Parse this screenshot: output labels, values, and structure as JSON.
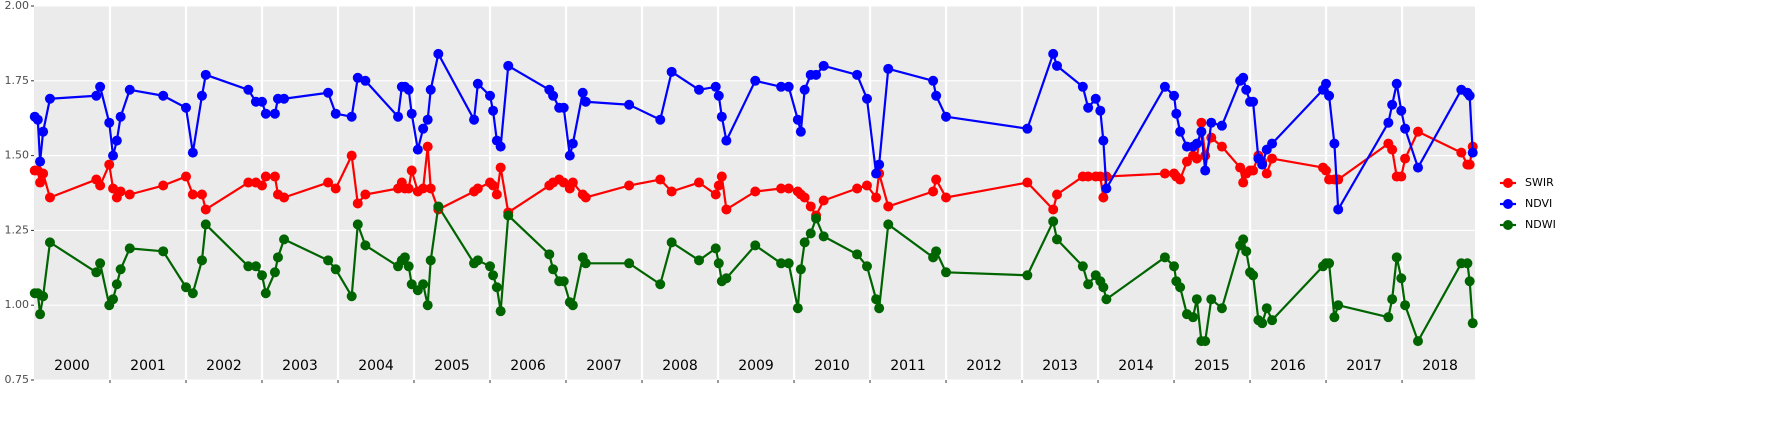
{
  "chart_data": {
    "type": "line",
    "x": [
      2000.01,
      2000.05,
      2000.08,
      2000.12,
      2000.21,
      2000.82,
      2000.87,
      2000.99,
      2001.04,
      2001.09,
      2001.14,
      2001.26,
      2001.7,
      2002.0,
      2002.09,
      2002.21,
      2002.26,
      2002.82,
      2002.92,
      2003.0,
      2003.05,
      2003.17,
      2003.21,
      2003.29,
      2003.87,
      2003.97,
      2004.18,
      2004.26,
      2004.36,
      2004.79,
      2004.84,
      2004.88,
      2004.93,
      2004.97,
      2005.05,
      2005.12,
      2005.18,
      2005.22,
      2005.32,
      2005.79,
      2005.84,
      2006.0,
      2006.04,
      2006.09,
      2006.14,
      2006.24,
      2006.78,
      2006.83,
      2006.91,
      2006.97,
      2007.05,
      2007.09,
      2007.22,
      2007.26,
      2007.83,
      2008.24,
      2008.39,
      2008.75,
      2008.97,
      2009.01,
      2009.05,
      2009.11,
      2009.49,
      2009.83,
      2009.93,
      2010.05,
      2010.09,
      2010.14,
      2010.22,
      2010.29,
      2010.39,
      2010.83,
      2010.96,
      2011.08,
      2011.12,
      2011.24,
      2011.83,
      2011.87,
      2012.0,
      2013.07,
      2013.41,
      2013.46,
      2013.8,
      2013.87,
      2013.97,
      2014.03,
      2014.07,
      2014.11,
      2014.88,
      2015.0,
      2015.03,
      2015.08,
      2015.17,
      2015.25,
      2015.3,
      2015.36,
      2015.41,
      2015.49,
      2015.63,
      2015.87,
      2015.91,
      2015.95,
      2016.0,
      2016.04,
      2016.11,
      2016.16,
      2016.22,
      2016.29,
      2016.96,
      2017.0,
      2017.04,
      2017.11,
      2017.16,
      2017.82,
      2017.87,
      2017.93,
      2017.99,
      2018.04,
      2018.21,
      2018.78,
      2018.86,
      2018.89,
      2018.93
    ],
    "series": [
      {
        "name": "SWIR",
        "color": "#ff0000",
        "values": [
          1.45,
          1.45,
          1.41,
          1.44,
          1.36,
          1.42,
          1.4,
          1.47,
          1.39,
          1.36,
          1.38,
          1.37,
          1.4,
          1.43,
          1.37,
          1.37,
          1.32,
          1.41,
          1.41,
          1.4,
          1.43,
          1.43,
          1.37,
          1.36,
          1.41,
          1.39,
          1.5,
          1.34,
          1.37,
          1.39,
          1.41,
          1.39,
          1.39,
          1.45,
          1.38,
          1.39,
          1.53,
          1.39,
          1.32,
          1.38,
          1.39,
          1.41,
          1.4,
          1.37,
          1.46,
          1.31,
          1.4,
          1.41,
          1.42,
          1.41,
          1.39,
          1.41,
          1.37,
          1.36,
          1.4,
          1.42,
          1.38,
          1.41,
          1.37,
          1.4,
          1.43,
          1.32,
          1.38,
          1.39,
          1.39,
          1.38,
          1.37,
          1.36,
          1.33,
          1.3,
          1.35,
          1.39,
          1.4,
          1.36,
          1.44,
          1.33,
          1.38,
          1.42,
          1.36,
          1.41,
          1.32,
          1.37,
          1.43,
          1.43,
          1.43,
          1.43,
          1.36,
          1.43,
          1.44,
          1.44,
          1.43,
          1.42,
          1.48,
          1.5,
          1.49,
          1.61,
          1.5,
          1.56,
          1.53,
          1.46,
          1.41,
          1.44,
          1.45,
          1.45,
          1.5,
          1.48,
          1.44,
          1.49,
          1.46,
          1.45,
          1.42,
          1.42,
          1.42,
          1.54,
          1.52,
          1.43,
          1.43,
          1.49,
          1.58,
          1.51,
          1.47,
          1.47,
          1.53
        ]
      },
      {
        "name": "NDVI",
        "color": "#0000ff",
        "values": [
          1.63,
          1.62,
          1.48,
          1.58,
          1.69,
          1.7,
          1.73,
          1.61,
          1.5,
          1.55,
          1.63,
          1.72,
          1.7,
          1.66,
          1.51,
          1.7,
          1.77,
          1.72,
          1.68,
          1.68,
          1.64,
          1.64,
          1.69,
          1.69,
          1.71,
          1.64,
          1.63,
          1.76,
          1.75,
          1.63,
          1.73,
          1.73,
          1.72,
          1.64,
          1.52,
          1.59,
          1.62,
          1.72,
          1.84,
          1.62,
          1.74,
          1.7,
          1.65,
          1.55,
          1.53,
          1.8,
          1.72,
          1.7,
          1.66,
          1.66,
          1.5,
          1.54,
          1.71,
          1.68,
          1.67,
          1.62,
          1.78,
          1.72,
          1.73,
          1.7,
          1.63,
          1.55,
          1.75,
          1.73,
          1.73,
          1.62,
          1.58,
          1.72,
          1.77,
          1.77,
          1.8,
          1.77,
          1.69,
          1.44,
          1.47,
          1.79,
          1.75,
          1.7,
          1.63,
          1.59,
          1.84,
          1.8,
          1.73,
          1.66,
          1.69,
          1.65,
          1.55,
          1.39,
          1.73,
          1.7,
          1.64,
          1.58,
          1.53,
          1.53,
          1.54,
          1.58,
          1.45,
          1.61,
          1.6,
          1.75,
          1.76,
          1.72,
          1.68,
          1.68,
          1.49,
          1.47,
          1.52,
          1.54,
          1.72,
          1.74,
          1.7,
          1.54,
          1.32,
          1.61,
          1.67,
          1.74,
          1.65,
          1.59,
          1.46,
          1.72,
          1.71,
          1.7,
          1.51
        ]
      },
      {
        "name": "NDWI",
        "color": "#006400",
        "values": [
          1.04,
          1.04,
          0.97,
          1.03,
          1.21,
          1.11,
          1.14,
          1.0,
          1.02,
          1.07,
          1.12,
          1.19,
          1.18,
          1.06,
          1.04,
          1.15,
          1.27,
          1.13,
          1.13,
          1.1,
          1.04,
          1.11,
          1.16,
          1.22,
          1.15,
          1.12,
          1.03,
          1.27,
          1.2,
          1.13,
          1.15,
          1.16,
          1.13,
          1.07,
          1.05,
          1.07,
          1.0,
          1.15,
          1.33,
          1.14,
          1.15,
          1.13,
          1.1,
          1.06,
          0.98,
          1.3,
          1.17,
          1.12,
          1.08,
          1.08,
          1.01,
          1.0,
          1.16,
          1.14,
          1.14,
          1.07,
          1.21,
          1.15,
          1.19,
          1.14,
          1.08,
          1.09,
          1.2,
          1.14,
          1.14,
          0.99,
          1.12,
          1.21,
          1.24,
          1.29,
          1.23,
          1.17,
          1.13,
          1.02,
          0.99,
          1.27,
          1.16,
          1.18,
          1.11,
          1.1,
          1.28,
          1.22,
          1.13,
          1.07,
          1.1,
          1.08,
          1.06,
          1.02,
          1.16,
          1.13,
          1.08,
          1.06,
          0.97,
          0.96,
          1.02,
          0.88,
          0.88,
          1.02,
          0.99,
          1.2,
          1.22,
          1.18,
          1.11,
          1.1,
          0.95,
          0.94,
          0.99,
          0.95,
          1.13,
          1.14,
          1.14,
          0.96,
          1.0,
          0.96,
          1.02,
          1.16,
          1.09,
          1.0,
          0.88,
          1.14,
          1.14,
          1.08,
          0.94
        ]
      }
    ],
    "xlim": [
      2000,
      2018.96
    ],
    "xgrid": [
      2001,
      2002,
      2003,
      2004,
      2005,
      2006,
      2007,
      2008,
      2009,
      2010,
      2011,
      2012,
      2013,
      2014,
      2015,
      2016,
      2017,
      2018
    ],
    "xticks": [
      {
        "value": 2000.5,
        "label": "2000"
      },
      {
        "value": 2001.5,
        "label": "2001"
      },
      {
        "value": 2002.5,
        "label": "2002"
      },
      {
        "value": 2003.5,
        "label": "2003"
      },
      {
        "value": 2004.5,
        "label": "2004"
      },
      {
        "value": 2005.5,
        "label": "2005"
      },
      {
        "value": 2006.5,
        "label": "2006"
      },
      {
        "value": 2007.5,
        "label": "2007"
      },
      {
        "value": 2008.5,
        "label": "2008"
      },
      {
        "value": 2009.5,
        "label": "2009"
      },
      {
        "value": 2010.5,
        "label": "2010"
      },
      {
        "value": 2011.5,
        "label": "2011"
      },
      {
        "value": 2012.5,
        "label": "2012"
      },
      {
        "value": 2013.5,
        "label": "2013"
      },
      {
        "value": 2014.5,
        "label": "2014"
      },
      {
        "value": 2015.5,
        "label": "2015"
      },
      {
        "value": 2016.5,
        "label": "2016"
      },
      {
        "value": 2017.5,
        "label": "2017"
      },
      {
        "value": 2018.5,
        "label": "2018"
      }
    ],
    "ylim": [
      0.75,
      2.0
    ],
    "yticks": [
      {
        "value": 0.75,
        "label": "0.75"
      },
      {
        "value": 1.0,
        "label": "1.00"
      },
      {
        "value": 1.25,
        "label": "1.25"
      },
      {
        "value": 1.5,
        "label": "1.50"
      },
      {
        "value": 1.75,
        "label": "1.75"
      },
      {
        "value": 2.0,
        "label": "2.00"
      }
    ],
    "grid": true,
    "legend": "right"
  }
}
